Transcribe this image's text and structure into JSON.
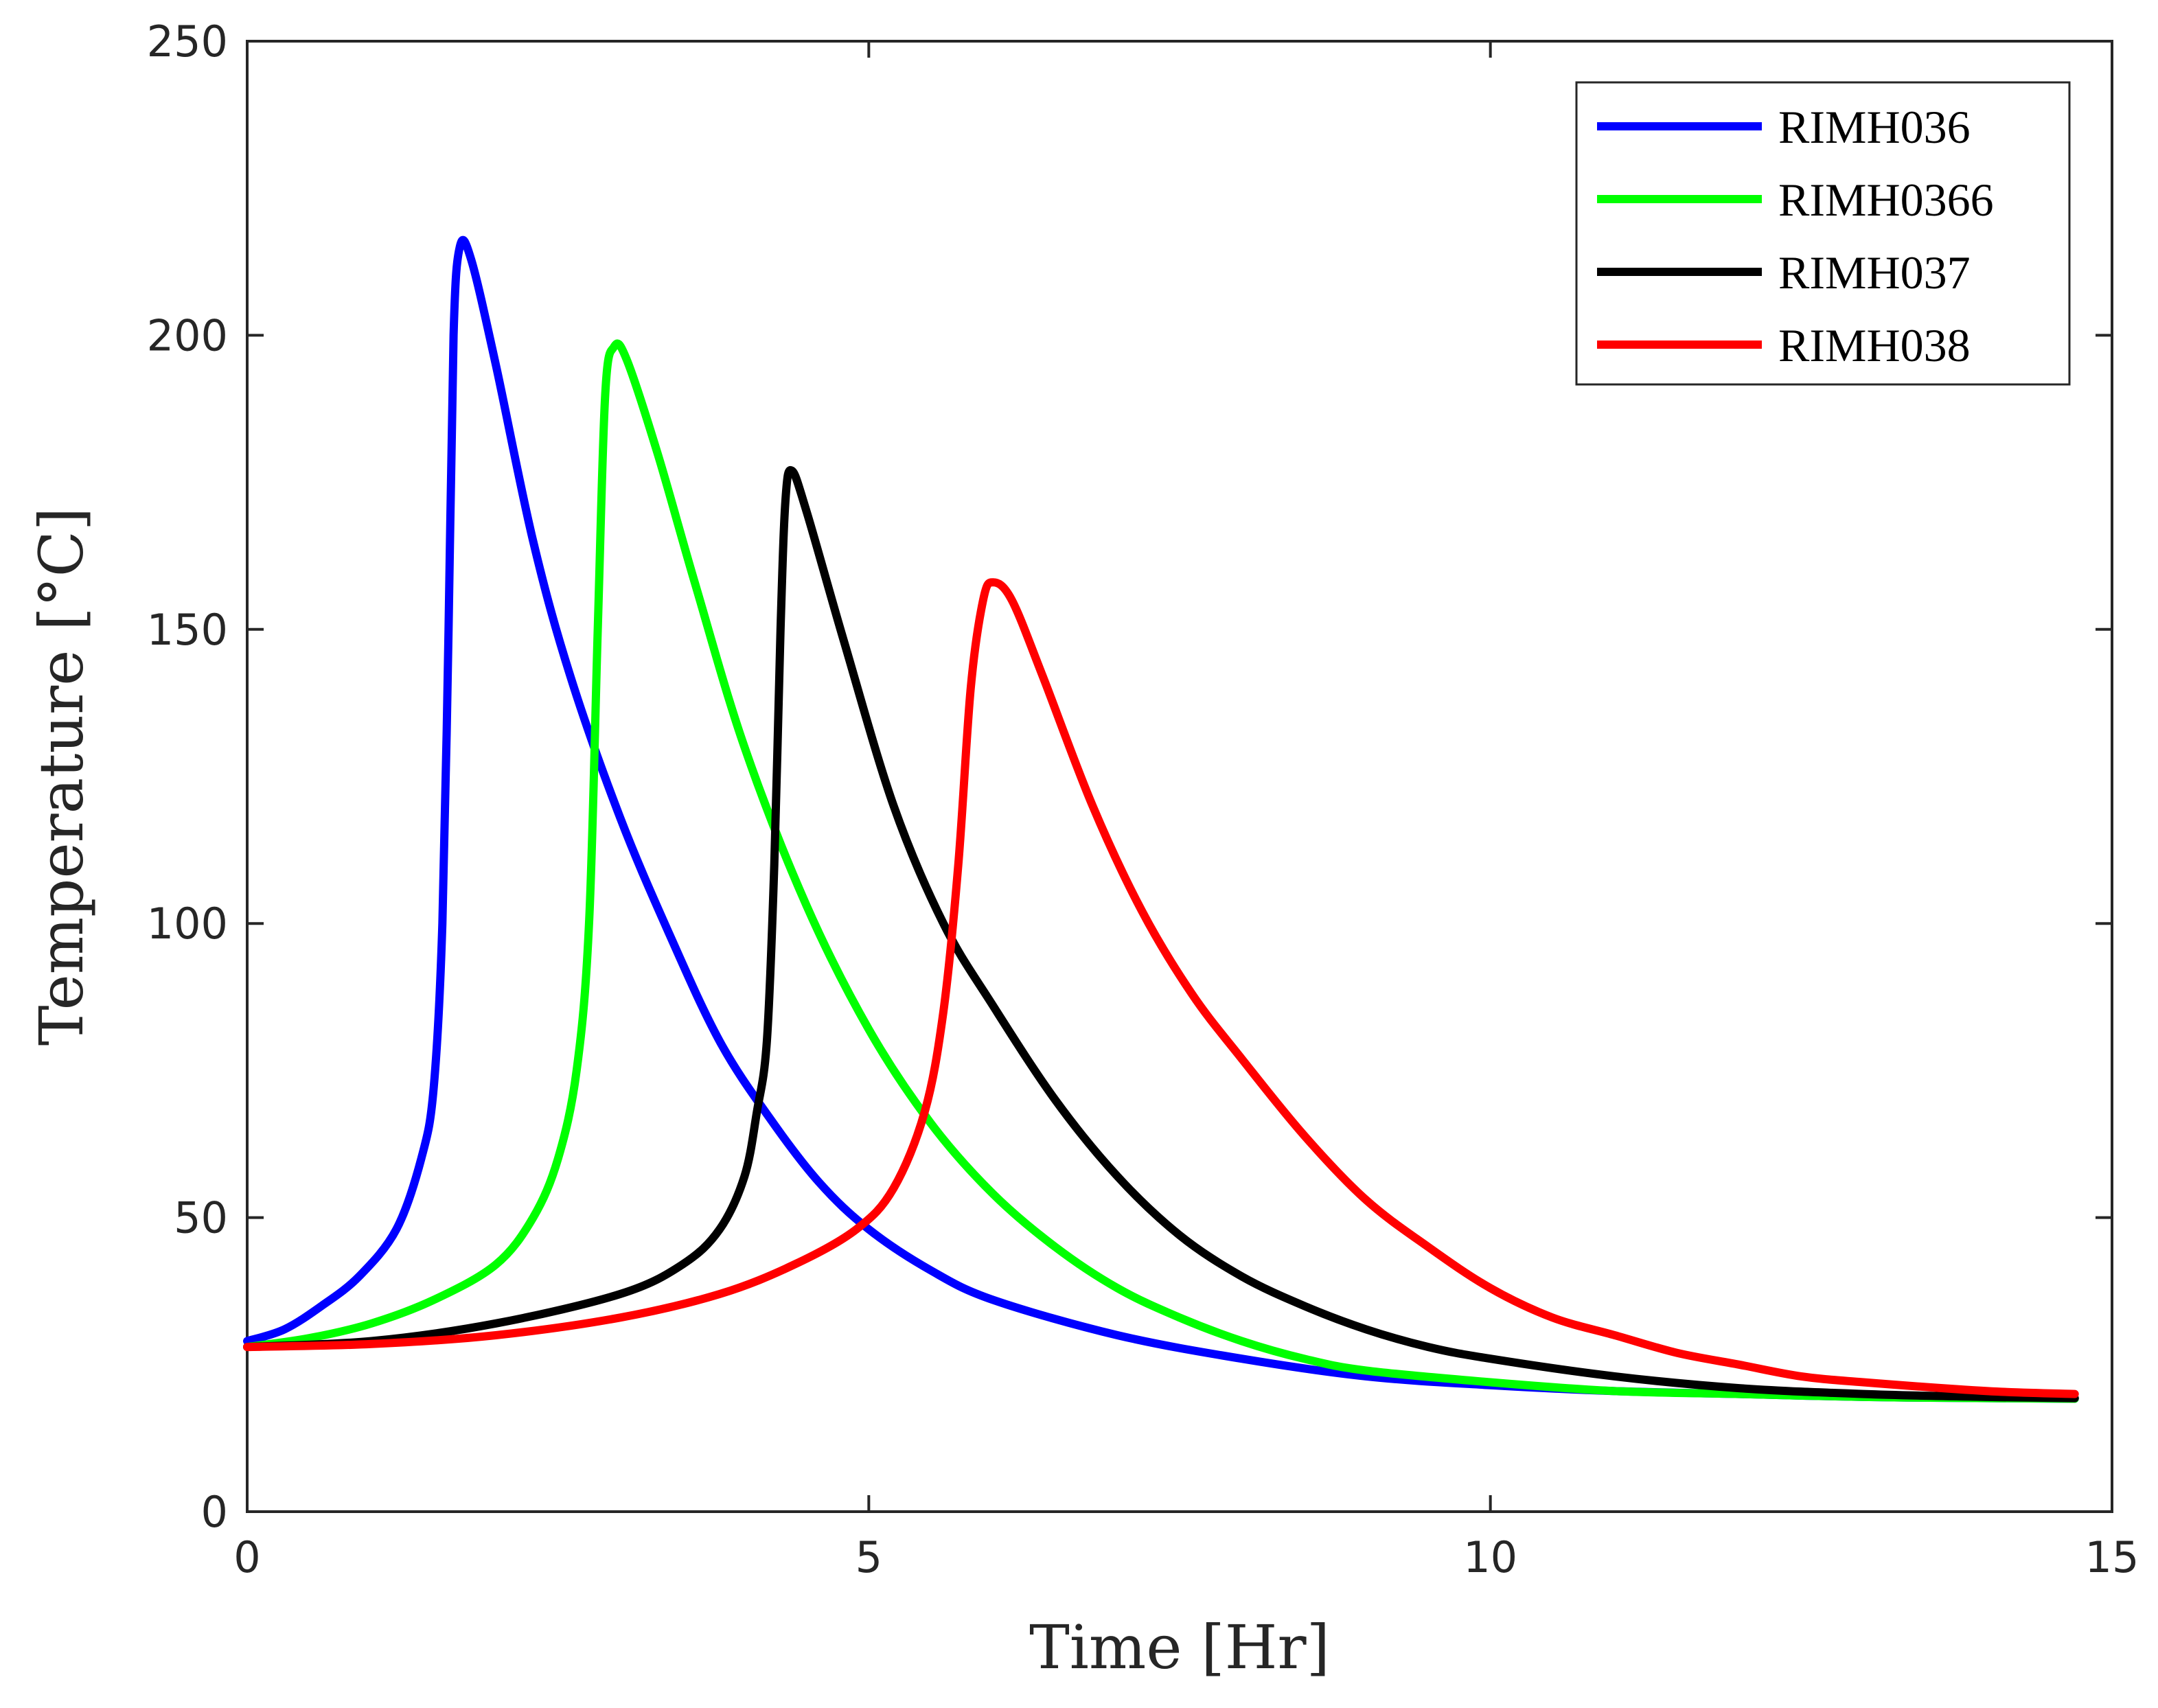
{
  "chart_data": {
    "type": "line",
    "title": "",
    "xlabel": "Time [Hr]",
    "ylabel": "Temperature [°C]",
    "xlim": [
      0,
      15
    ],
    "ylim": [
      0,
      250
    ],
    "xticks": [
      0,
      5,
      10,
      15
    ],
    "yticks": [
      0,
      50,
      100,
      150,
      200,
      250
    ],
    "grid": false,
    "legend_position": "top-right",
    "series": [
      {
        "name": "RIMH036",
        "color": "#0000ff",
        "points": [
          [
            0,
            29
          ],
          [
            0.3,
            31
          ],
          [
            0.6,
            35
          ],
          [
            0.9,
            40
          ],
          [
            1.2,
            48
          ],
          [
            1.4,
            60
          ],
          [
            1.5,
            72
          ],
          [
            1.57,
            100
          ],
          [
            1.62,
            150
          ],
          [
            1.66,
            200
          ],
          [
            1.71,
            215
          ],
          [
            1.8,
            213
          ],
          [
            2.0,
            195
          ],
          [
            2.3,
            165
          ],
          [
            2.6,
            142
          ],
          [
            3.0,
            118
          ],
          [
            3.4,
            98
          ],
          [
            3.8,
            80
          ],
          [
            4.2,
            67
          ],
          [
            4.6,
            56
          ],
          [
            5.0,
            48
          ],
          [
            5.5,
            41
          ],
          [
            6.0,
            36
          ],
          [
            7.0,
            30
          ],
          [
            8.0,
            26
          ],
          [
            9.0,
            23
          ],
          [
            10.0,
            21.5
          ],
          [
            11.0,
            20.5
          ],
          [
            12.0,
            20
          ],
          [
            13.0,
            19.5
          ],
          [
            14.0,
            19.3
          ],
          [
            14.7,
            19.2
          ]
        ]
      },
      {
        "name": "RIMH0366",
        "color": "#00ff00",
        "points": [
          [
            0,
            28
          ],
          [
            0.5,
            29.5
          ],
          [
            1.0,
            32
          ],
          [
            1.5,
            36
          ],
          [
            2.0,
            42
          ],
          [
            2.3,
            50
          ],
          [
            2.5,
            60
          ],
          [
            2.65,
            75
          ],
          [
            2.75,
            100
          ],
          [
            2.82,
            150
          ],
          [
            2.88,
            190
          ],
          [
            2.95,
            198
          ],
          [
            3.05,
            196
          ],
          [
            3.3,
            180
          ],
          [
            3.6,
            158
          ],
          [
            4.0,
            130
          ],
          [
            4.5,
            103
          ],
          [
            5.0,
            82
          ],
          [
            5.5,
            66
          ],
          [
            6.0,
            54
          ],
          [
            6.5,
            45
          ],
          [
            7.0,
            38
          ],
          [
            7.5,
            33
          ],
          [
            8.0,
            29
          ],
          [
            8.5,
            26
          ],
          [
            9.0,
            24
          ],
          [
            10.0,
            22
          ],
          [
            11.0,
            20.5
          ],
          [
            12.0,
            20
          ],
          [
            13.0,
            19.5
          ],
          [
            14.0,
            19.3
          ],
          [
            14.7,
            19.2
          ]
        ]
      },
      {
        "name": "RIMH037",
        "color": "#000000",
        "points": [
          [
            0,
            28
          ],
          [
            1.0,
            29
          ],
          [
            2.0,
            32
          ],
          [
            3.0,
            37
          ],
          [
            3.5,
            42
          ],
          [
            3.8,
            48
          ],
          [
            4.0,
            57
          ],
          [
            4.1,
            68
          ],
          [
            4.18,
            80
          ],
          [
            4.24,
            110
          ],
          [
            4.29,
            150
          ],
          [
            4.33,
            172
          ],
          [
            4.38,
            177
          ],
          [
            4.5,
            170
          ],
          [
            4.8,
            148
          ],
          [
            5.2,
            120
          ],
          [
            5.6,
            100
          ],
          [
            6.0,
            86
          ],
          [
            6.5,
            70
          ],
          [
            7.0,
            57
          ],
          [
            7.5,
            47
          ],
          [
            8.0,
            40
          ],
          [
            8.5,
            35
          ],
          [
            9.0,
            31
          ],
          [
            9.5,
            28
          ],
          [
            10.0,
            26
          ],
          [
            11.0,
            23
          ],
          [
            12.0,
            21
          ],
          [
            13.0,
            20
          ],
          [
            14.0,
            19.5
          ],
          [
            14.7,
            19.3
          ]
        ]
      },
      {
        "name": "RIMH038",
        "color": "#ff0000",
        "points": [
          [
            0,
            28
          ],
          [
            1.0,
            28.5
          ],
          [
            2.0,
            30
          ],
          [
            3.0,
            33
          ],
          [
            3.8,
            37
          ],
          [
            4.4,
            42
          ],
          [
            4.9,
            48
          ],
          [
            5.2,
            55
          ],
          [
            5.45,
            68
          ],
          [
            5.6,
            85
          ],
          [
            5.72,
            110
          ],
          [
            5.82,
            140
          ],
          [
            5.92,
            155
          ],
          [
            6.0,
            158
          ],
          [
            6.15,
            155
          ],
          [
            6.4,
            142
          ],
          [
            6.8,
            120
          ],
          [
            7.2,
            102
          ],
          [
            7.6,
            88
          ],
          [
            8.0,
            77
          ],
          [
            8.5,
            64
          ],
          [
            9.0,
            53
          ],
          [
            9.5,
            45
          ],
          [
            10.0,
            38
          ],
          [
            10.5,
            33
          ],
          [
            11.0,
            30
          ],
          [
            11.5,
            27
          ],
          [
            12.0,
            25
          ],
          [
            12.5,
            23
          ],
          [
            13.0,
            22
          ],
          [
            14.0,
            20.5
          ],
          [
            14.7,
            20
          ]
        ]
      }
    ]
  }
}
